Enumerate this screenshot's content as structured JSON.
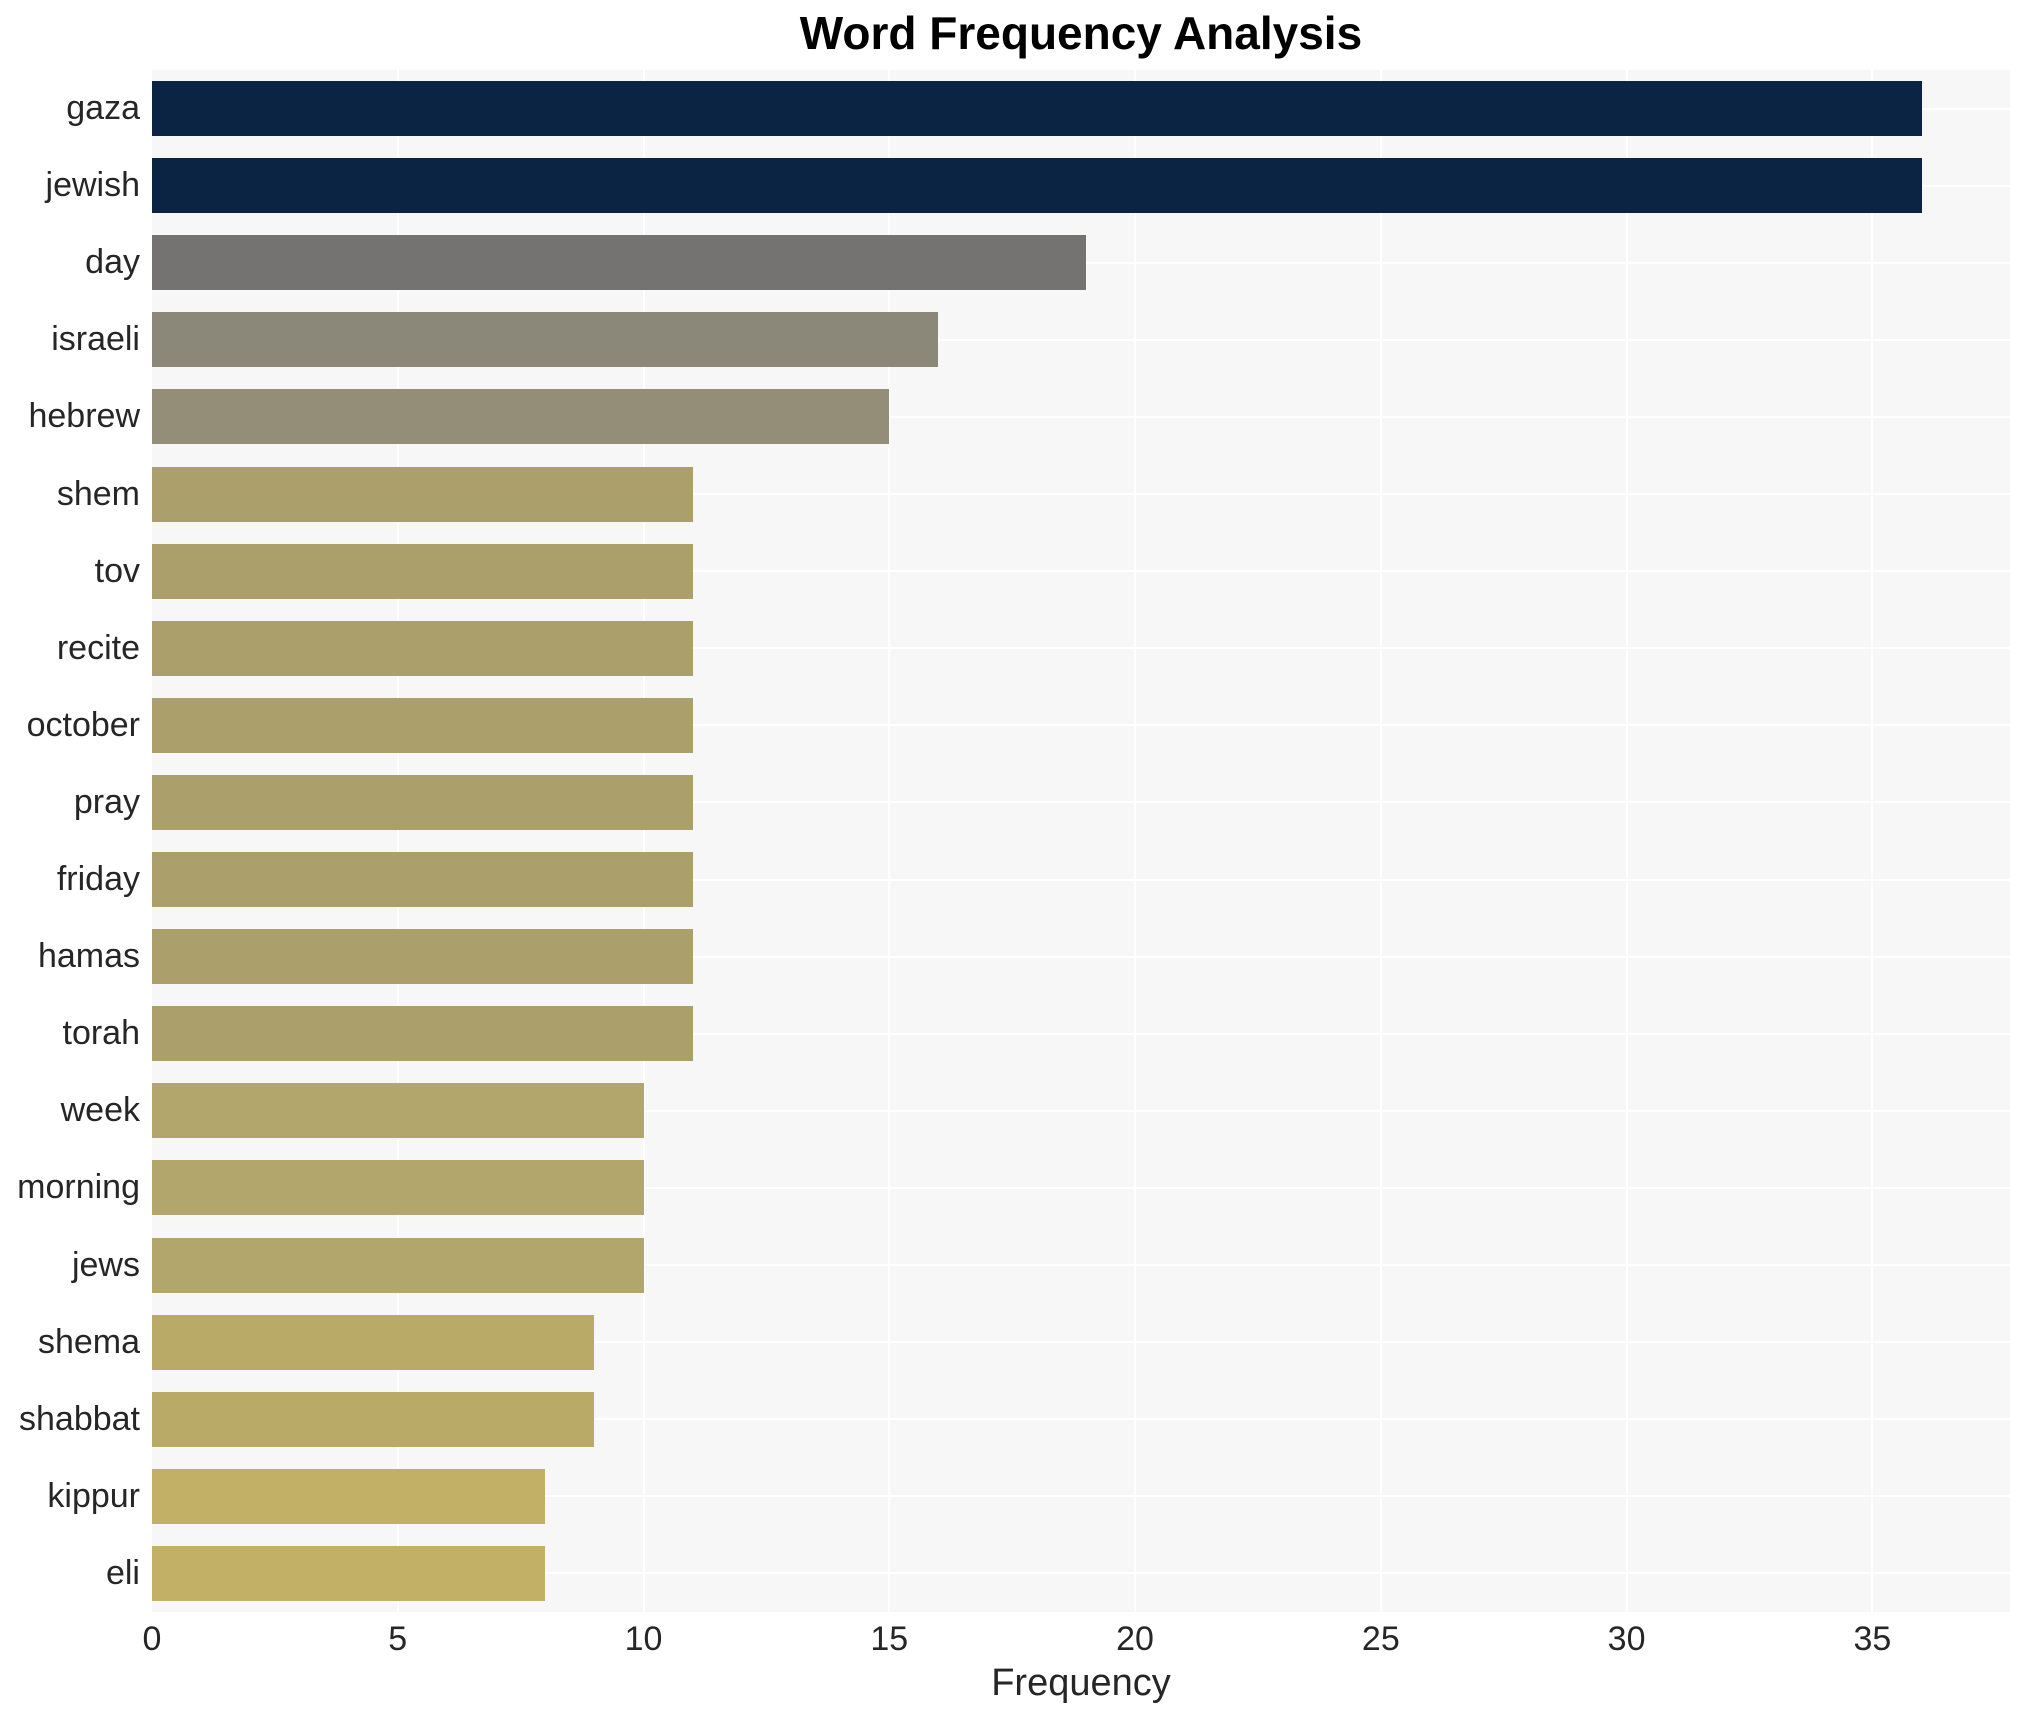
{
  "chart_data": {
    "type": "bar",
    "orientation": "horizontal",
    "title": "Word Frequency Analysis",
    "xlabel": "Frequency",
    "ylabel": "",
    "categories": [
      "gaza",
      "jewish",
      "day",
      "israeli",
      "hebrew",
      "shem",
      "tov",
      "recite",
      "october",
      "pray",
      "friday",
      "hamas",
      "torah",
      "week",
      "morning",
      "jews",
      "shema",
      "shabbat",
      "kippur",
      "eli"
    ],
    "values": [
      36,
      36,
      19,
      16,
      15,
      11,
      11,
      11,
      11,
      11,
      11,
      11,
      11,
      10,
      10,
      10,
      9,
      9,
      8,
      8
    ],
    "bar_colors": [
      "#0c2444",
      "#0c2444",
      "#757372",
      "#8b8779",
      "#948d78",
      "#aba06c",
      "#aba06c",
      "#aba06c",
      "#aba06c",
      "#aba06c",
      "#aba06c",
      "#aba06c",
      "#aba06c",
      "#b2a66c",
      "#b2a66c",
      "#b2a66c",
      "#b9aa67",
      "#b9aa67",
      "#c1b065",
      "#c1b065"
    ],
    "xticks": [
      0,
      5,
      10,
      15,
      20,
      25,
      30,
      35
    ],
    "xlim": [
      0,
      37.8
    ],
    "grid": true,
    "legend_visible": false,
    "plot_bg": "#f7f7f7",
    "page_bg": "#ffffff",
    "grid_color": "#ffffff",
    "text_color": "#262626",
    "title_color": "#000000"
  }
}
